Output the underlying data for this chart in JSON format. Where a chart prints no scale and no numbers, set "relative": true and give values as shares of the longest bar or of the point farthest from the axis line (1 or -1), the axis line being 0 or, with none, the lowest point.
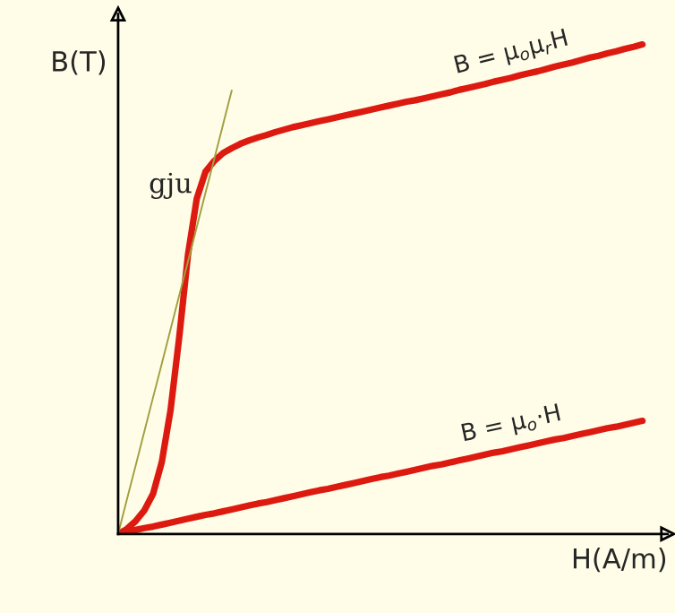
{
  "chart_data": {
    "type": "line",
    "relative": true,
    "xlabel": "H(A/m)",
    "ylabel": "B(T)",
    "legend": false,
    "marker": "none",
    "line_style": "solid",
    "categories": [
      null,
      null,
      null,
      null,
      null,
      null,
      null,
      null,
      null,
      null,
      null,
      null,
      null,
      null,
      null,
      null,
      null,
      null,
      null,
      null,
      null,
      null,
      null,
      null,
      null,
      null,
      null,
      null,
      null,
      null,
      null,
      null,
      null,
      null,
      null,
      null,
      null,
      null,
      null,
      null,
      null,
      null,
      null,
      null,
      null,
      null,
      null,
      null,
      null,
      null,
      null,
      null,
      null,
      null,
      null,
      null,
      null,
      null,
      null,
      null,
      null
    ],
    "series": [
      {
        "name": "B = μ$_{o}$μ$_{r}$H",
        "color": "#dd1a10",
        "values": [
          0,
          0.01,
          0.026,
          0.048,
          0.082,
          0.147,
          0.253,
          0.403,
          0.571,
          0.685,
          0.74,
          0.762,
          0.778,
          0.788,
          0.797,
          0.804,
          0.81,
          0.815,
          0.821,
          0.826,
          0.831,
          0.835,
          0.839,
          0.843,
          0.847,
          0.851,
          0.855,
          0.859,
          0.863,
          0.867,
          0.871,
          0.875,
          0.879,
          0.883,
          0.886,
          0.89,
          0.894,
          0.898,
          0.902,
          0.907,
          0.911,
          0.915,
          0.919,
          0.924,
          0.928,
          0.932,
          0.937,
          0.941,
          0.945,
          0.95,
          0.955,
          0.959,
          0.963,
          0.968,
          0.973,
          0.977,
          0.982,
          0.986,
          0.991,
          0.995,
          1.0
        ]
      },
      {
        "name": "B = μ$_{o}$·H",
        "color": "#dd1a10",
        "values": [
          0,
          0.004,
          0.008,
          0.012,
          0.015,
          0.019,
          0.023,
          0.027,
          0.031,
          0.035,
          0.039,
          0.042,
          0.046,
          0.05,
          0.054,
          0.058,
          0.062,
          0.065,
          0.069,
          0.073,
          0.077,
          0.081,
          0.085,
          0.089,
          0.092,
          0.096,
          0.1,
          0.104,
          0.108,
          0.112,
          0.116,
          0.119,
          0.123,
          0.127,
          0.131,
          0.135,
          0.139,
          0.142,
          0.146,
          0.15,
          0.154,
          0.158,
          0.162,
          0.166,
          0.169,
          0.173,
          0.177,
          0.181,
          0.185,
          0.189,
          0.193,
          0.196,
          0.2,
          0.204,
          0.208,
          0.212,
          0.216,
          0.219,
          0.223,
          0.227,
          0.231
        ]
      },
      {
        "color": "#a0a040",
        "values": [
          0,
          0.07,
          0.139,
          0.209,
          0.279,
          0.348,
          0.418,
          0.488,
          0.557,
          0.627,
          0.697,
          0.766,
          0.836,
          0.906,
          null,
          null,
          null,
          null,
          null,
          null,
          null,
          null,
          null,
          null,
          null,
          null,
          null,
          null,
          null,
          null,
          null,
          null,
          null,
          null,
          null,
          null,
          null,
          null,
          null,
          null,
          null,
          null,
          null,
          null,
          null,
          null,
          null,
          null,
          null,
          null,
          null,
          null,
          null,
          null,
          null,
          null,
          null,
          null,
          null,
          null,
          null
        ]
      }
    ],
    "annotations": [
      "gju"
    ]
  }
}
